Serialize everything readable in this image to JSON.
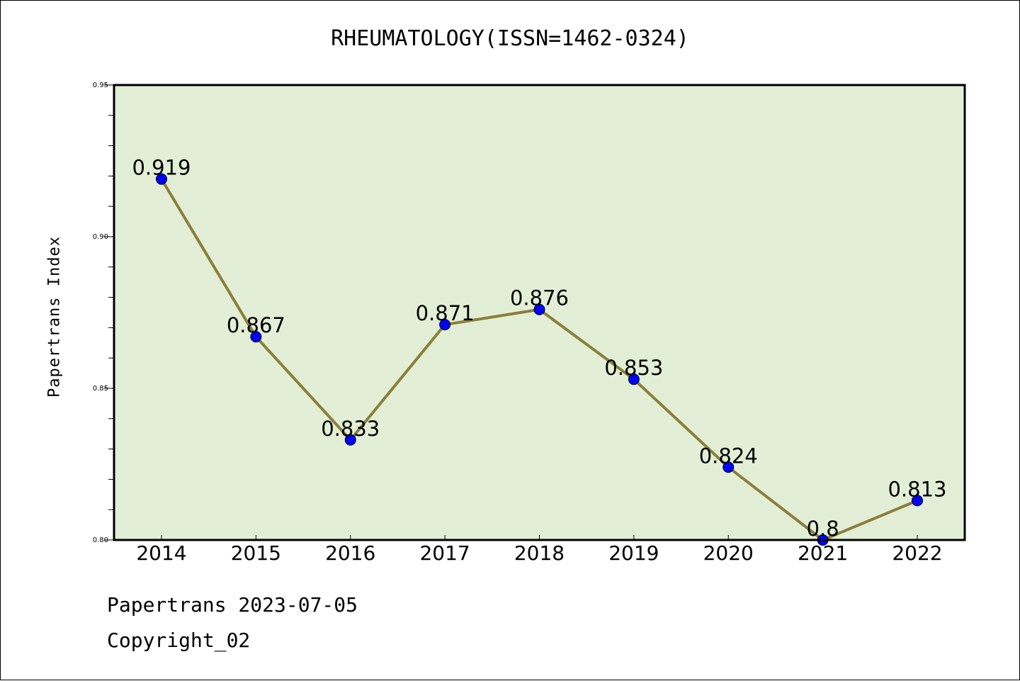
{
  "page": {
    "title": "RHEUMATOLOGY(ISSN=1462-0324)",
    "footer_date": "Papertrans 2023-07-05",
    "footer_copyright": "Copyright_02"
  },
  "chart_data": {
    "type": "line",
    "title": "RHEUMATOLOGY(ISSN=1462-0324)",
    "xlabel": "",
    "ylabel": "Papertrans Index",
    "categories": [
      "2014",
      "2015",
      "2016",
      "2017",
      "2018",
      "2019",
      "2020",
      "2021",
      "2022"
    ],
    "series": [
      {
        "values": [
          0.919,
          0.867,
          0.833,
          0.871,
          0.876,
          0.853,
          0.824,
          0.8,
          0.813
        ],
        "labels": [
          "0.919",
          "0.867",
          "0.833",
          "0.871",
          "0.876",
          "0.853",
          "0.824",
          "0.8",
          "0.813"
        ],
        "line_color": "#8b7f3a",
        "marker_color": "#0000ff"
      }
    ],
    "ylim": [
      0.8,
      0.95
    ],
    "yticks": [
      "0.80",
      "0.85",
      "0.90",
      "0.95"
    ],
    "plot_background": "#e2efd6",
    "grid": false,
    "legend": "none"
  }
}
